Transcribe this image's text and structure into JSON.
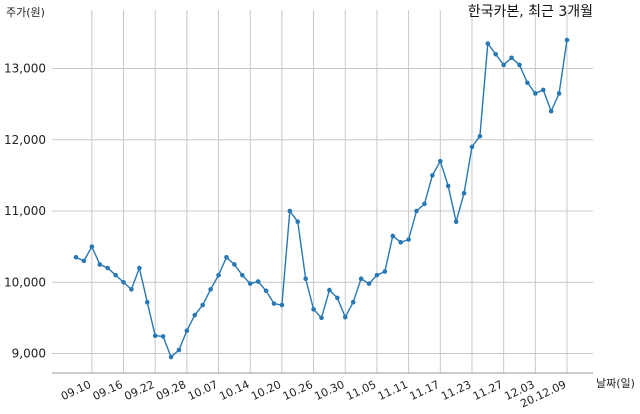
{
  "chart_data": {
    "type": "line",
    "title": "한국카본, 최근 3개월",
    "ylabel": "주가(원)",
    "xlabel": "날짜(일)",
    "ylim": [
      8700,
      13600
    ],
    "yticks": [
      9000,
      10000,
      11000,
      12000,
      13000
    ],
    "ytick_labels": [
      "9,000",
      "10,000",
      "11,000",
      "12,000",
      "13,000"
    ],
    "grid": true,
    "x_tick_labels": [
      "09.10",
      "09.16",
      "09.22",
      "09.28",
      "10.07",
      "10.14",
      "10.20",
      "10.26",
      "10.30",
      "11.05",
      "11.11",
      "11.17",
      "11.23",
      "11.27",
      "12.03",
      "20.12.09"
    ],
    "x_tick_indices": [
      2,
      6,
      10,
      14,
      18,
      22,
      26,
      30,
      34,
      38,
      42,
      46,
      50,
      54,
      58,
      62
    ],
    "series": [
      {
        "values": [
          10350,
          10300,
          10500,
          10250,
          10200,
          10100,
          10000,
          9900,
          10200,
          9720,
          9250,
          9240,
          8950,
          9050,
          9320,
          9540,
          9680,
          9900,
          10100,
          10350,
          10250,
          10100,
          9980,
          10010,
          9880,
          9700,
          9680,
          11000,
          10850,
          10050,
          9620,
          9500,
          9890,
          9780,
          9510,
          9720,
          10050,
          9980,
          10100,
          10150,
          10650,
          10560,
          10600,
          11000,
          11100,
          11500,
          11700,
          11350,
          10850,
          11250,
          11900,
          12050,
          13350,
          13200,
          13050,
          13150,
          13050,
          12800,
          12650,
          12700,
          12400,
          12650,
          13400
        ]
      }
    ]
  }
}
